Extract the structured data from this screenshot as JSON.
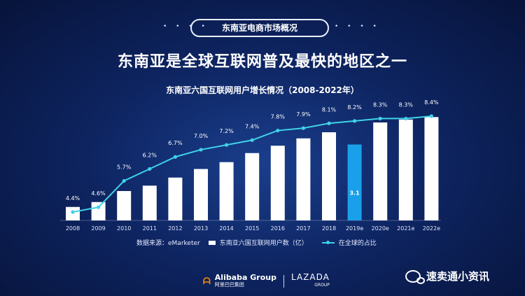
{
  "header": {
    "badge": "东南亚电商市场概况",
    "headline": "东南亚是全球互联网普及最快的地区之一"
  },
  "chart_data": {
    "type": "bar",
    "title": "东南亚六国互联网用户增长情况（2008-2022年）",
    "categories": [
      "2008",
      "2009",
      "2010",
      "2011",
      "2012",
      "2013",
      "2014",
      "2015",
      "2016",
      "2017",
      "2018",
      "2019e",
      "2020e",
      "2021e",
      "2022e"
    ],
    "series": [
      {
        "name": "东南亚六国互联网用户数（亿）",
        "type": "bar",
        "values": [
          0.55,
          0.75,
          1.2,
          1.42,
          1.75,
          2.1,
          2.38,
          2.75,
          3.05,
          3.35,
          3.6,
          3.1,
          4.0,
          4.12,
          4.22
        ],
        "value_labels": [
          null,
          null,
          null,
          null,
          null,
          null,
          null,
          null,
          null,
          null,
          null,
          "3.1",
          null,
          null,
          null
        ],
        "highlight_index": 11,
        "color": "#ffffff",
        "highlight_color": "#1aa0ea"
      },
      {
        "name": "在全球的占比",
        "type": "line",
        "values": [
          4.4,
          4.6,
          5.7,
          6.2,
          6.7,
          7.0,
          7.2,
          7.4,
          7.8,
          7.9,
          8.1,
          8.2,
          8.3,
          8.3,
          8.4
        ],
        "labels": [
          "4.4%",
          "4.6%",
          "5.7%",
          "6.2%",
          "6.7%",
          "7.0%",
          "7.2%",
          "7.4%",
          "7.8%",
          "7.9%",
          "8.1%",
          "8.2%",
          "8.3%",
          "8.3%",
          "8.4%"
        ],
        "color": "#3fd2e8"
      }
    ],
    "legend_position": "bottom-center",
    "grid": false
  },
  "legend": {
    "source": "数据来源：eMarketer",
    "bar_label": "东南亚六国互联网用户数（亿）",
    "line_label": "在全球的占比"
  },
  "footer": {
    "alibaba": "Alibaba Group",
    "alibaba_cn": "阿里巴巴集团",
    "lazada": "LAZADA",
    "lazada_sub": "GROUP",
    "brand_name": "速卖通小资讯"
  },
  "colors": {
    "background": "#0e2562",
    "bar": "#ffffff",
    "bar_highlight": "#1aa0ea",
    "line": "#3fd2e8"
  }
}
